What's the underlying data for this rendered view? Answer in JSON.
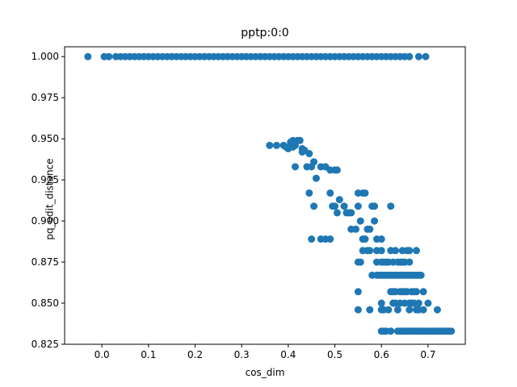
{
  "chart_data": {
    "type": "scatter",
    "title": "pptp:0:0",
    "xlabel": "cos_dim",
    "ylabel": "pq_edit_distance",
    "xlim": [
      -0.08,
      0.78
    ],
    "ylim": [
      0.825,
      1.006
    ],
    "xticks": [
      0.0,
      0.1,
      0.2,
      0.3,
      0.4,
      0.5,
      0.6,
      0.7
    ],
    "xtick_labels": [
      "0.0",
      "0.1",
      "0.2",
      "0.3",
      "0.4",
      "0.5",
      "0.6",
      "0.7"
    ],
    "yticks": [
      0.825,
      0.85,
      0.875,
      0.9,
      0.925,
      0.95,
      0.975,
      1.0
    ],
    "ytick_labels": [
      "0.825",
      "0.850",
      "0.875",
      "0.900",
      "0.925",
      "0.950",
      "0.975",
      "1.000"
    ],
    "grid": false,
    "marker_color": "#1f77b4",
    "series": [
      {
        "points": [
          [
            -0.03,
            1.0
          ],
          [
            0.005,
            1.0
          ],
          [
            0.015,
            1.0
          ],
          [
            0.03,
            1.0
          ],
          [
            0.04,
            1.0
          ],
          [
            0.05,
            1.0
          ],
          [
            0.06,
            1.0
          ],
          [
            0.07,
            1.0
          ],
          [
            0.08,
            1.0
          ],
          [
            0.09,
            1.0
          ],
          [
            0.1,
            1.0
          ],
          [
            0.11,
            1.0
          ],
          [
            0.12,
            1.0
          ],
          [
            0.13,
            1.0
          ],
          [
            0.14,
            1.0
          ],
          [
            0.15,
            1.0
          ],
          [
            0.16,
            1.0
          ],
          [
            0.17,
            1.0
          ],
          [
            0.18,
            1.0
          ],
          [
            0.19,
            1.0
          ],
          [
            0.2,
            1.0
          ],
          [
            0.21,
            1.0
          ],
          [
            0.22,
            1.0
          ],
          [
            0.23,
            1.0
          ],
          [
            0.24,
            1.0
          ],
          [
            0.25,
            1.0
          ],
          [
            0.26,
            1.0
          ],
          [
            0.27,
            1.0
          ],
          [
            0.28,
            1.0
          ],
          [
            0.29,
            1.0
          ],
          [
            0.3,
            1.0
          ],
          [
            0.31,
            1.0
          ],
          [
            0.32,
            1.0
          ],
          [
            0.33,
            1.0
          ],
          [
            0.34,
            1.0
          ],
          [
            0.35,
            1.0
          ],
          [
            0.36,
            1.0
          ],
          [
            0.37,
            1.0
          ],
          [
            0.38,
            1.0
          ],
          [
            0.39,
            1.0
          ],
          [
            0.4,
            1.0
          ],
          [
            0.41,
            1.0
          ],
          [
            0.42,
            1.0
          ],
          [
            0.43,
            1.0
          ],
          [
            0.44,
            1.0
          ],
          [
            0.45,
            1.0
          ],
          [
            0.46,
            1.0
          ],
          [
            0.47,
            1.0
          ],
          [
            0.48,
            1.0
          ],
          [
            0.49,
            1.0
          ],
          [
            0.5,
            1.0
          ],
          [
            0.51,
            1.0
          ],
          [
            0.52,
            1.0
          ],
          [
            0.53,
            1.0
          ],
          [
            0.54,
            1.0
          ],
          [
            0.55,
            1.0
          ],
          [
            0.56,
            1.0
          ],
          [
            0.57,
            1.0
          ],
          [
            0.58,
            1.0
          ],
          [
            0.59,
            1.0
          ],
          [
            0.6,
            1.0
          ],
          [
            0.61,
            1.0
          ],
          [
            0.62,
            1.0
          ],
          [
            0.63,
            1.0
          ],
          [
            0.64,
            1.0
          ],
          [
            0.65,
            1.0
          ],
          [
            0.66,
            1.0
          ],
          [
            0.68,
            1.0
          ],
          [
            0.695,
            1.0
          ],
          [
            0.36,
            0.946
          ],
          [
            0.375,
            0.946
          ],
          [
            0.39,
            0.946
          ],
          [
            0.395,
            0.945
          ],
          [
            0.405,
            0.948
          ],
          [
            0.41,
            0.949
          ],
          [
            0.415,
            0.946
          ],
          [
            0.42,
            0.949
          ],
          [
            0.425,
            0.949
          ],
          [
            0.43,
            0.944
          ],
          [
            0.435,
            0.943
          ],
          [
            0.4,
            0.944
          ],
          [
            0.41,
            0.945
          ],
          [
            0.445,
            0.941
          ],
          [
            0.43,
            0.942
          ],
          [
            0.45,
            0.933
          ],
          [
            0.455,
            0.936
          ],
          [
            0.44,
            0.933
          ],
          [
            0.415,
            0.933
          ],
          [
            0.46,
            0.926
          ],
          [
            0.47,
            0.933
          ],
          [
            0.48,
            0.933
          ],
          [
            0.49,
            0.931
          ],
          [
            0.5,
            0.931
          ],
          [
            0.505,
            0.931
          ],
          [
            0.445,
            0.917
          ],
          [
            0.49,
            0.917
          ],
          [
            0.455,
            0.909
          ],
          [
            0.47,
            0.889
          ],
          [
            0.45,
            0.889
          ],
          [
            0.48,
            0.889
          ],
          [
            0.49,
            0.889
          ],
          [
            0.495,
            0.909
          ],
          [
            0.5,
            0.909
          ],
          [
            0.51,
            0.913
          ],
          [
            0.52,
            0.909
          ],
          [
            0.525,
            0.905
          ],
          [
            0.53,
            0.905
          ],
          [
            0.535,
            0.905
          ],
          [
            0.505,
            0.905
          ],
          [
            0.55,
            0.917
          ],
          [
            0.56,
            0.917
          ],
          [
            0.565,
            0.917
          ],
          [
            0.55,
            0.909
          ],
          [
            0.555,
            0.9
          ],
          [
            0.545,
            0.895
          ],
          [
            0.535,
            0.895
          ],
          [
            0.56,
            0.889
          ],
          [
            0.565,
            0.889
          ],
          [
            0.57,
            0.895
          ],
          [
            0.575,
            0.895
          ],
          [
            0.58,
            0.909
          ],
          [
            0.585,
            0.909
          ],
          [
            0.585,
            0.9
          ],
          [
            0.59,
            0.889
          ],
          [
            0.6,
            0.889
          ],
          [
            0.56,
            0.882
          ],
          [
            0.57,
            0.882
          ],
          [
            0.575,
            0.882
          ],
          [
            0.59,
            0.882
          ],
          [
            0.6,
            0.882
          ],
          [
            0.62,
            0.909
          ],
          [
            0.62,
            0.882
          ],
          [
            0.63,
            0.882
          ],
          [
            0.645,
            0.882
          ],
          [
            0.655,
            0.882
          ],
          [
            0.66,
            0.882
          ],
          [
            0.675,
            0.882
          ],
          [
            0.55,
            0.875
          ],
          [
            0.555,
            0.875
          ],
          [
            0.59,
            0.875
          ],
          [
            0.6,
            0.875
          ],
          [
            0.605,
            0.875
          ],
          [
            0.61,
            0.875
          ],
          [
            0.615,
            0.875
          ],
          [
            0.625,
            0.875
          ],
          [
            0.635,
            0.875
          ],
          [
            0.64,
            0.875
          ],
          [
            0.645,
            0.875
          ],
          [
            0.65,
            0.875
          ],
          [
            0.66,
            0.875
          ],
          [
            0.58,
            0.867
          ],
          [
            0.59,
            0.867
          ],
          [
            0.595,
            0.867
          ],
          [
            0.6,
            0.867
          ],
          [
            0.605,
            0.867
          ],
          [
            0.61,
            0.867
          ],
          [
            0.615,
            0.867
          ],
          [
            0.62,
            0.867
          ],
          [
            0.625,
            0.867
          ],
          [
            0.63,
            0.867
          ],
          [
            0.635,
            0.867
          ],
          [
            0.64,
            0.867
          ],
          [
            0.645,
            0.867
          ],
          [
            0.65,
            0.867
          ],
          [
            0.655,
            0.867
          ],
          [
            0.66,
            0.867
          ],
          [
            0.665,
            0.867
          ],
          [
            0.67,
            0.867
          ],
          [
            0.675,
            0.867
          ],
          [
            0.68,
            0.867
          ],
          [
            0.685,
            0.867
          ],
          [
            0.55,
            0.857
          ],
          [
            0.62,
            0.857
          ],
          [
            0.625,
            0.857
          ],
          [
            0.63,
            0.857
          ],
          [
            0.64,
            0.857
          ],
          [
            0.645,
            0.857
          ],
          [
            0.65,
            0.857
          ],
          [
            0.655,
            0.857
          ],
          [
            0.665,
            0.857
          ],
          [
            0.67,
            0.857
          ],
          [
            0.675,
            0.857
          ],
          [
            0.69,
            0.857
          ],
          [
            0.6,
            0.85
          ],
          [
            0.625,
            0.85
          ],
          [
            0.63,
            0.85
          ],
          [
            0.64,
            0.85
          ],
          [
            0.65,
            0.85
          ],
          [
            0.66,
            0.85
          ],
          [
            0.665,
            0.85
          ],
          [
            0.67,
            0.85
          ],
          [
            0.68,
            0.85
          ],
          [
            0.7,
            0.85
          ],
          [
            0.55,
            0.846
          ],
          [
            0.575,
            0.846
          ],
          [
            0.6,
            0.846
          ],
          [
            0.605,
            0.846
          ],
          [
            0.615,
            0.846
          ],
          [
            0.635,
            0.846
          ],
          [
            0.66,
            0.846
          ],
          [
            0.675,
            0.846
          ],
          [
            0.68,
            0.846
          ],
          [
            0.69,
            0.846
          ],
          [
            0.72,
            0.846
          ],
          [
            0.6,
            0.833
          ],
          [
            0.605,
            0.833
          ],
          [
            0.61,
            0.833
          ],
          [
            0.62,
            0.833
          ],
          [
            0.635,
            0.833
          ],
          [
            0.64,
            0.833
          ],
          [
            0.645,
            0.833
          ],
          [
            0.65,
            0.833
          ],
          [
            0.655,
            0.833
          ],
          [
            0.66,
            0.833
          ],
          [
            0.665,
            0.833
          ],
          [
            0.67,
            0.833
          ],
          [
            0.675,
            0.833
          ],
          [
            0.68,
            0.833
          ],
          [
            0.685,
            0.833
          ],
          [
            0.69,
            0.833
          ],
          [
            0.695,
            0.833
          ],
          [
            0.7,
            0.833
          ],
          [
            0.705,
            0.833
          ],
          [
            0.71,
            0.833
          ],
          [
            0.715,
            0.833
          ],
          [
            0.72,
            0.833
          ],
          [
            0.725,
            0.833
          ],
          [
            0.73,
            0.833
          ],
          [
            0.735,
            0.833
          ],
          [
            0.74,
            0.833
          ],
          [
            0.745,
            0.833
          ],
          [
            0.75,
            0.833
          ]
        ]
      }
    ]
  }
}
